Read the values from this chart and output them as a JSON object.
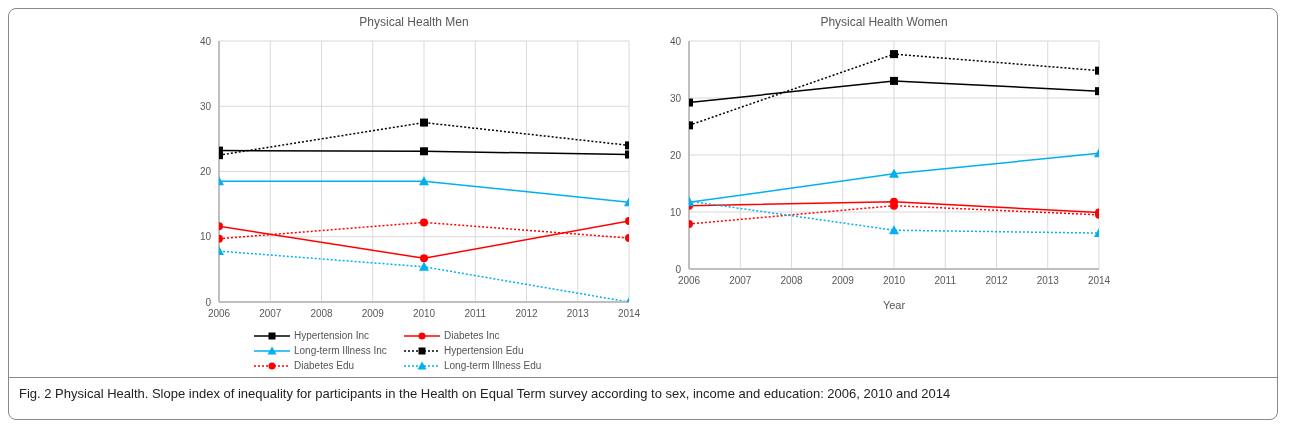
{
  "chart_data": [
    {
      "type": "line",
      "title": "Physical Health Men",
      "x": [
        2006,
        2010,
        2014
      ],
      "xlim": [
        2006,
        2014
      ],
      "xticks": [
        2006,
        2007,
        2008,
        2009,
        2010,
        2011,
        2012,
        2013,
        2014
      ],
      "ylim": [
        0,
        40
      ],
      "yticks": [
        0,
        10,
        20,
        30,
        40
      ],
      "grid": true,
      "legend": "bottom",
      "series": [
        {
          "name": "Hypertension Inc",
          "color": "#000000",
          "marker": "square",
          "line_style": "solid",
          "values": [
            23.2,
            23.1,
            22.6
          ]
        },
        {
          "name": "Diabetes Inc",
          "color": "#ff0000",
          "marker": "circle",
          "line_style": "solid",
          "values": [
            11.6,
            6.7,
            12.4
          ]
        },
        {
          "name": "Long-term Illness Inc",
          "color": "#00b0f0",
          "marker": "triangle",
          "line_style": "solid",
          "values": [
            18.5,
            18.5,
            15.3
          ]
        },
        {
          "name": "Hypertension Edu",
          "color": "#000000",
          "marker": "square",
          "line_style": "dotted",
          "values": [
            22.5,
            27.5,
            24.0
          ]
        },
        {
          "name": "Diabetes Edu",
          "color": "#ff0000",
          "marker": "circle",
          "line_style": "dotted",
          "values": [
            9.7,
            12.2,
            9.8
          ]
        },
        {
          "name": "Long-term Illness Edu",
          "color": "#00b0f0",
          "marker": "triangle",
          "line_style": "dotted",
          "values": [
            7.8,
            5.4,
            0
          ]
        }
      ],
      "annotations": [
        "Fig. 2 Physical Health. Slope index of inequality for participants in the Health on Equal Term survey according to sex, income and education: 2006, 2010 and 2014"
      ]
    },
    {
      "type": "line",
      "title": "Physical Health Women",
      "xlabel": "Year",
      "x": [
        2006,
        2010,
        2014
      ],
      "xlim": [
        2006,
        2014
      ],
      "xticks": [
        2006,
        2007,
        2008,
        2009,
        2010,
        2011,
        2012,
        2013,
        2014
      ],
      "ylim": [
        0,
        40
      ],
      "yticks": [
        0,
        10,
        20,
        30,
        40
      ],
      "grid": true,
      "series": [
        {
          "color": "#000000",
          "marker": "square",
          "line_style": "solid",
          "values": [
            29.2,
            33.0,
            31.2
          ]
        },
        {
          "color": "#ff0000",
          "marker": "circle",
          "line_style": "solid",
          "values": [
            11.1,
            11.8,
            9.9
          ]
        },
        {
          "color": "#00b0f0",
          "marker": "triangle",
          "line_style": "solid",
          "values": [
            11.7,
            16.7,
            20.3
          ]
        },
        {
          "color": "#000000",
          "marker": "square",
          "line_style": "dotted",
          "values": [
            25.2,
            37.7,
            34.8
          ]
        },
        {
          "color": "#ff0000",
          "marker": "circle",
          "line_style": "dotted",
          "values": [
            7.9,
            11.1,
            9.5
          ]
        },
        {
          "color": "#00b0f0",
          "marker": "triangle",
          "line_style": "dotted",
          "values": [
            11.9,
            6.8,
            6.3
          ]
        }
      ]
    }
  ]
}
